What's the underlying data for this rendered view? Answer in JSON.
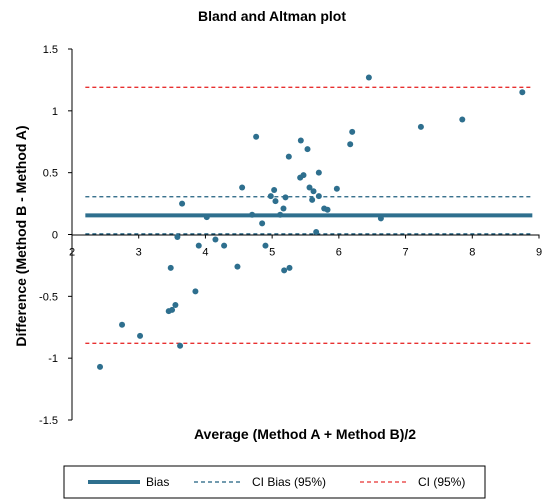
{
  "chart_data": {
    "type": "scatter",
    "title": "Bland and Altman plot",
    "xlabel": "Average (Method A + Method B)/2",
    "ylabel": "Difference (Method B - Method A)",
    "xlim": [
      2,
      9
    ],
    "ylim": [
      -1.5,
      1.5
    ],
    "xticks": [
      "2",
      "3",
      "4",
      "5",
      "6",
      "7",
      "8",
      "9"
    ],
    "yticks": [
      "1.5",
      "1",
      "0.5",
      "0",
      "-0.5",
      "-1",
      "-1.5"
    ],
    "x_axis_position": "y=0",
    "grid": false,
    "legend_position": "bottom",
    "colors": {
      "points": "#2e6f8e",
      "bias": "#2e6f8e",
      "ci_bias": "#1f5f7f",
      "ci": "#e83030"
    },
    "lines": {
      "bias": 0.155,
      "ci_bias_upper": 0.305,
      "ci_bias_lower": 0.005,
      "ci_upper": 1.19,
      "ci_lower": -0.88,
      "x_range": [
        2.2,
        8.9
      ]
    },
    "legend": [
      {
        "key": "bias",
        "label": "Bias"
      },
      {
        "key": "ci_bias",
        "label": "CI Bias (95%)"
      },
      {
        "key": "ci",
        "label": "CI (95%)"
      }
    ],
    "points": [
      {
        "x": 2.42,
        "y": -1.07
      },
      {
        "x": 2.75,
        "y": -0.73
      },
      {
        "x": 3.02,
        "y": -0.82
      },
      {
        "x": 3.45,
        "y": -0.62
      },
      {
        "x": 3.5,
        "y": -0.61
      },
      {
        "x": 3.48,
        "y": -0.27
      },
      {
        "x": 3.55,
        "y": -0.57
      },
      {
        "x": 3.58,
        "y": -0.02
      },
      {
        "x": 3.62,
        "y": -0.9
      },
      {
        "x": 3.65,
        "y": 0.25
      },
      {
        "x": 3.85,
        "y": -0.46
      },
      {
        "x": 3.9,
        "y": -0.09
      },
      {
        "x": 4.02,
        "y": 0.14
      },
      {
        "x": 4.15,
        "y": -0.04
      },
      {
        "x": 4.28,
        "y": -0.09
      },
      {
        "x": 4.48,
        "y": -0.26
      },
      {
        "x": 4.55,
        "y": 0.38
      },
      {
        "x": 4.7,
        "y": 0.16
      },
      {
        "x": 4.76,
        "y": 0.79
      },
      {
        "x": 4.85,
        "y": 0.09
      },
      {
        "x": 4.9,
        "y": -0.09
      },
      {
        "x": 4.98,
        "y": 0.31
      },
      {
        "x": 5.03,
        "y": 0.36
      },
      {
        "x": 5.05,
        "y": 0.27
      },
      {
        "x": 5.12,
        "y": 0.16
      },
      {
        "x": 5.17,
        "y": 0.21
      },
      {
        "x": 5.2,
        "y": 0.3
      },
      {
        "x": 5.18,
        "y": -0.29
      },
      {
        "x": 5.25,
        "y": 0.63
      },
      {
        "x": 5.26,
        "y": -0.27
      },
      {
        "x": 5.42,
        "y": 0.46
      },
      {
        "x": 5.43,
        "y": 0.76
      },
      {
        "x": 5.47,
        "y": 0.48
      },
      {
        "x": 5.53,
        "y": 0.69
      },
      {
        "x": 5.56,
        "y": 0.38
      },
      {
        "x": 5.6,
        "y": 0.28
      },
      {
        "x": 5.62,
        "y": 0.35
      },
      {
        "x": 5.66,
        "y": 0.02
      },
      {
        "x": 5.7,
        "y": 0.31
      },
      {
        "x": 5.7,
        "y": 0.5
      },
      {
        "x": 5.78,
        "y": 0.21
      },
      {
        "x": 5.83,
        "y": 0.2
      },
      {
        "x": 5.97,
        "y": 0.37
      },
      {
        "x": 6.17,
        "y": 0.73
      },
      {
        "x": 6.2,
        "y": 0.83
      },
      {
        "x": 6.45,
        "y": 1.27
      },
      {
        "x": 6.63,
        "y": 0.13
      },
      {
        "x": 7.23,
        "y": 0.87
      },
      {
        "x": 7.85,
        "y": 0.93
      },
      {
        "x": 8.75,
        "y": 1.15
      }
    ]
  }
}
